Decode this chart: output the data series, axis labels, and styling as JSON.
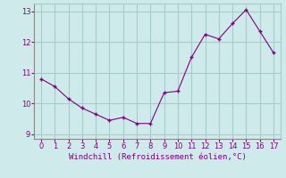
{
  "x": [
    0,
    1,
    2,
    3,
    4,
    5,
    6,
    7,
    8,
    9,
    10,
    11,
    12,
    13,
    14,
    15,
    16,
    17
  ],
  "y": [
    10.8,
    10.55,
    10.15,
    9.85,
    9.65,
    9.45,
    9.55,
    9.35,
    9.35,
    10.35,
    10.4,
    11.5,
    12.25,
    12.1,
    12.6,
    13.05,
    12.35,
    11.65
  ],
  "line_color": "#800080",
  "marker": "+",
  "marker_color": "#800080",
  "background_color": "#ceeaea",
  "grid_color": "#a8cccc",
  "xlabel": "Windchill (Refroidissement éolien,°C)",
  "xlabel_color": "#800080",
  "tick_color": "#800080",
  "ylim": [
    8.85,
    13.25
  ],
  "xlim": [
    -0.5,
    17.5
  ],
  "yticks": [
    9,
    10,
    11,
    12,
    13
  ],
  "xticks": [
    0,
    1,
    2,
    3,
    4,
    5,
    6,
    7,
    8,
    9,
    10,
    11,
    12,
    13,
    14,
    15,
    16,
    17
  ],
  "figsize": [
    3.2,
    2.0
  ],
  "dpi": 100
}
